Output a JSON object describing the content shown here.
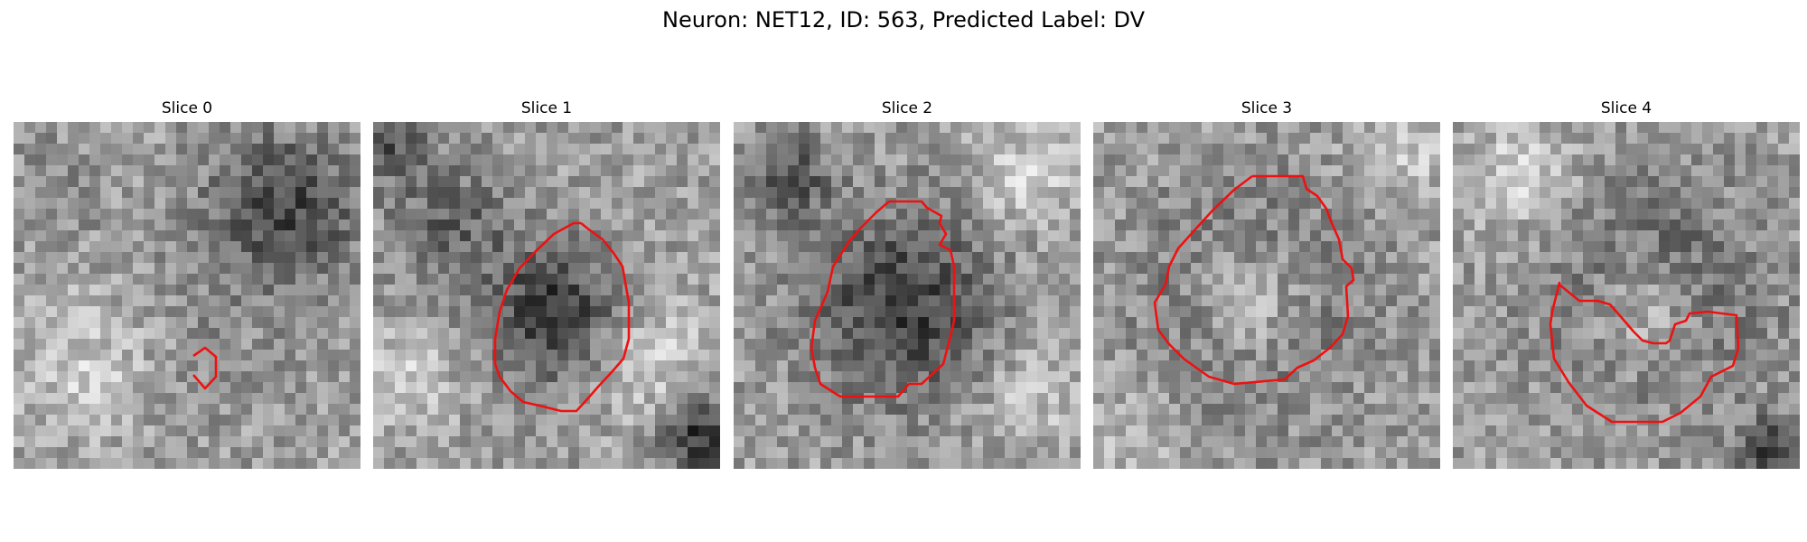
{
  "figure": {
    "title": "Neuron: NET12, ID: 563, Predicted Label: DV"
  },
  "panels": [
    {
      "title": "Slice 0"
    },
    {
      "title": "Slice 1"
    },
    {
      "title": "Slice 2"
    },
    {
      "title": "Slice 3"
    },
    {
      "title": "Slice 4"
    }
  ],
  "colors": {
    "contour": "#ee1111",
    "background": "#ffffff"
  }
}
